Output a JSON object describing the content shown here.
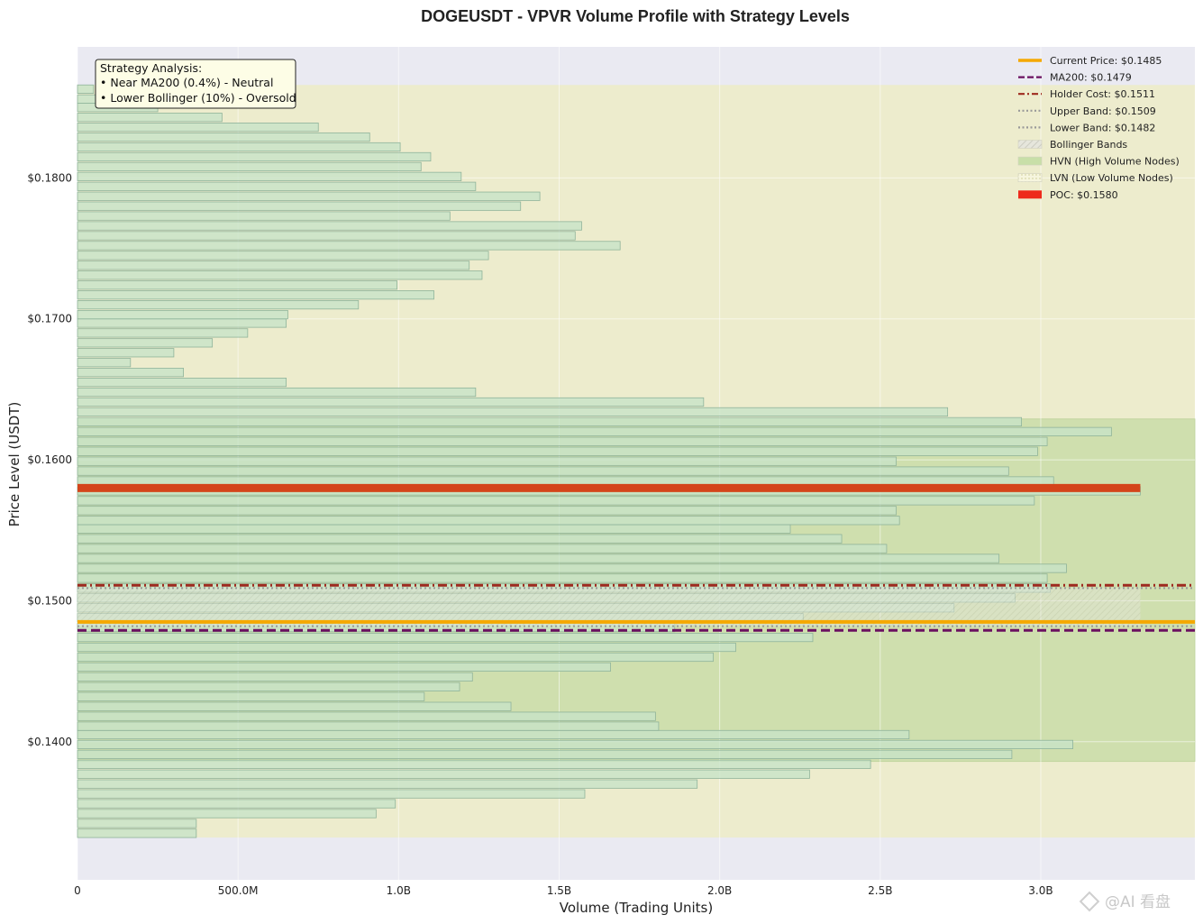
{
  "chart_data": {
    "type": "bar",
    "orientation": "horizontal",
    "title": "DOGEUSDT - VPVR Volume Profile with Strategy Levels",
    "xlabel": "Volume (Trading Units)",
    "ylabel": "Price Level (USDT)",
    "xlim": [
      0,
      3480000000
    ],
    "ylim": [
      0.1302,
      0.1893
    ],
    "x_ticks": [
      {
        "value": 0,
        "label": "0"
      },
      {
        "value": 500000000,
        "label": "500.0M"
      },
      {
        "value": 1000000000,
        "label": "1.0B"
      },
      {
        "value": 1500000000,
        "label": "1.5B"
      },
      {
        "value": 2000000000,
        "label": "2.0B"
      },
      {
        "value": 2500000000,
        "label": "2.5B"
      },
      {
        "value": 3000000000,
        "label": "3.0B"
      }
    ],
    "y_ticks": [
      {
        "value": 0.14,
        "label": "$0.1400"
      },
      {
        "value": 0.15,
        "label": "$0.1500"
      },
      {
        "value": 0.16,
        "label": "$0.1600"
      },
      {
        "value": 0.17,
        "label": "$0.1700"
      },
      {
        "value": 0.18,
        "label": "$0.1800"
      }
    ],
    "grid": true,
    "bin_height": 0.0006,
    "price_range": [
      0.1332,
      0.1866
    ],
    "bins": [
      {
        "price": 0.1335,
        "volume": 370000000
      },
      {
        "price": 0.1342,
        "volume": 370000000
      },
      {
        "price": 0.1349,
        "volume": 930000000
      },
      {
        "price": 0.1356,
        "volume": 990000000
      },
      {
        "price": 0.1363,
        "volume": 1580000000
      },
      {
        "price": 0.137,
        "volume": 1930000000
      },
      {
        "price": 0.1377,
        "volume": 2280000000
      },
      {
        "price": 0.1384,
        "volume": 2470000000
      },
      {
        "price": 0.1391,
        "volume": 2910000000
      },
      {
        "price": 0.1398,
        "volume": 3100000000
      },
      {
        "price": 0.1405,
        "volume": 2590000000
      },
      {
        "price": 0.1411,
        "volume": 1810000000
      },
      {
        "price": 0.1418,
        "volume": 1800000000
      },
      {
        "price": 0.1425,
        "volume": 1350000000
      },
      {
        "price": 0.1432,
        "volume": 1080000000
      },
      {
        "price": 0.1439,
        "volume": 1190000000
      },
      {
        "price": 0.1446,
        "volume": 1230000000
      },
      {
        "price": 0.1453,
        "volume": 1660000000
      },
      {
        "price": 0.146,
        "volume": 1980000000
      },
      {
        "price": 0.1467,
        "volume": 2050000000
      },
      {
        "price": 0.1474,
        "volume": 2290000000
      },
      {
        "price": 0.1481,
        "volume": 1860000000
      },
      {
        "price": 0.1488,
        "volume": 2260000000
      },
      {
        "price": 0.1495,
        "volume": 2730000000
      },
      {
        "price": 0.1502,
        "volume": 2920000000
      },
      {
        "price": 0.1509,
        "volume": 3030000000
      },
      {
        "price": 0.1516,
        "volume": 3020000000
      },
      {
        "price": 0.1523,
        "volume": 3080000000
      },
      {
        "price": 0.153,
        "volume": 2870000000
      },
      {
        "price": 0.1537,
        "volume": 2520000000
      },
      {
        "price": 0.1544,
        "volume": 2380000000
      },
      {
        "price": 0.1551,
        "volume": 2220000000
      },
      {
        "price": 0.1557,
        "volume": 2560000000
      },
      {
        "price": 0.1564,
        "volume": 2550000000
      },
      {
        "price": 0.1571,
        "volume": 2980000000
      },
      {
        "price": 0.1578,
        "volume": 3310000000
      },
      {
        "price": 0.1585,
        "volume": 3040000000
      },
      {
        "price": 0.1592,
        "volume": 2900000000
      },
      {
        "price": 0.1599,
        "volume": 2550000000
      },
      {
        "price": 0.1606,
        "volume": 2990000000
      },
      {
        "price": 0.1613,
        "volume": 3020000000
      },
      {
        "price": 0.162,
        "volume": 3220000000
      },
      {
        "price": 0.1627,
        "volume": 2940000000
      },
      {
        "price": 0.1634,
        "volume": 2710000000
      },
      {
        "price": 0.1641,
        "volume": 1950000000
      },
      {
        "price": 0.1648,
        "volume": 1240000000
      },
      {
        "price": 0.1655,
        "volume": 650000000
      },
      {
        "price": 0.1662,
        "volume": 330000000
      },
      {
        "price": 0.1669,
        "volume": 165000000
      },
      {
        "price": 0.1676,
        "volume": 300000000
      },
      {
        "price": 0.1683,
        "volume": 420000000
      },
      {
        "price": 0.169,
        "volume": 530000000
      },
      {
        "price": 0.1697,
        "volume": 650000000
      },
      {
        "price": 0.1703,
        "volume": 655000000
      },
      {
        "price": 0.171,
        "volume": 875000000
      },
      {
        "price": 0.1717,
        "volume": 1110000000
      },
      {
        "price": 0.1724,
        "volume": 995000000
      },
      {
        "price": 0.1731,
        "volume": 1260000000
      },
      {
        "price": 0.1738,
        "volume": 1220000000
      },
      {
        "price": 0.1745,
        "volume": 1280000000
      },
      {
        "price": 0.1752,
        "volume": 1690000000
      },
      {
        "price": 0.1759,
        "volume": 1550000000
      },
      {
        "price": 0.1766,
        "volume": 1570000000
      },
      {
        "price": 0.1773,
        "volume": 1160000000
      },
      {
        "price": 0.178,
        "volume": 1380000000
      },
      {
        "price": 0.1787,
        "volume": 1440000000
      },
      {
        "price": 0.1794,
        "volume": 1240000000
      },
      {
        "price": 0.1801,
        "volume": 1195000000
      },
      {
        "price": 0.1808,
        "volume": 1070000000
      },
      {
        "price": 0.1815,
        "volume": 1100000000
      },
      {
        "price": 0.1822,
        "volume": 1005000000
      },
      {
        "price": 0.1829,
        "volume": 910000000
      },
      {
        "price": 0.1836,
        "volume": 750000000
      },
      {
        "price": 0.1843,
        "volume": 450000000
      },
      {
        "price": 0.185,
        "volume": 250000000
      },
      {
        "price": 0.1856,
        "volume": 150000000
      },
      {
        "price": 0.1863,
        "volume": 50000000
      }
    ],
    "hvn_range": [
      0.1386,
      0.1629
    ],
    "bollinger_band": [
      0.1482,
      0.1509
    ],
    "poc": {
      "price": 0.158,
      "label": "POC: $0.1580",
      "color": "#d4441a"
    },
    "lines": [
      {
        "key": "current",
        "price": 0.1485,
        "label": "Current Price: $0.1485",
        "color": "#f5a800",
        "style": "solid",
        "width": 4
      },
      {
        "key": "ma200",
        "price": 0.1479,
        "label": "MA200: $0.1479",
        "color": "#6b1060",
        "style": "dashed",
        "width": 3
      },
      {
        "key": "holder",
        "price": 0.1511,
        "label": "Holder Cost: $0.1511",
        "color": "#9e2a1f",
        "style": "dashdot",
        "width": 3
      },
      {
        "key": "upper",
        "price": 0.1509,
        "label": "Upper Band: $0.1509",
        "color": "#999999",
        "style": "dotted",
        "width": 2
      },
      {
        "key": "lower",
        "price": 0.1482,
        "label": "Lower Band: $0.1482",
        "color": "#999999",
        "style": "dotted",
        "width": 2
      }
    ],
    "legend": {
      "placement": "top-right",
      "entries": [
        {
          "label": "Current Price: $0.1485",
          "kind": "line",
          "color": "#f5a800",
          "style": "solid"
        },
        {
          "label": "MA200: $0.1479",
          "kind": "line",
          "color": "#6b1060",
          "style": "dashed"
        },
        {
          "label": "Holder Cost: $0.1511",
          "kind": "line",
          "color": "#9e2a1f",
          "style": "dashdot"
        },
        {
          "label": "Upper Band: $0.1509",
          "kind": "line",
          "color": "#999999",
          "style": "dotted"
        },
        {
          "label": "Lower Band: $0.1482",
          "kind": "line",
          "color": "#999999",
          "style": "dotted"
        },
        {
          "label": "Bollinger Bands",
          "kind": "patch",
          "color": "#dcdcd0",
          "style": "hatch"
        },
        {
          "label": "HVN (High Volume Nodes)",
          "kind": "patch",
          "color": "#c8dfa8",
          "style": "fill"
        },
        {
          "label": "LVN (Low Volume Nodes)",
          "kind": "patch",
          "color": "#f3f2d6",
          "style": "dots"
        },
        {
          "label": "POC: $0.1580",
          "kind": "patch",
          "color": "#ee2a1c",
          "style": "fill"
        }
      ]
    },
    "annotation": {
      "lines": [
        "Strategy Analysis:",
        "• Near MA200 (0.4%) - Neutral",
        "• Lower Bollinger (10%) - Oversold"
      ]
    },
    "colors": {
      "plot_bg": "#eaeaf2",
      "lvn_bg": "#edeccd",
      "hvn_bg": "#cfdfae",
      "bar_fill": "#c6e3c8",
      "bar_edge": "#8fb39a"
    }
  },
  "watermark": "@AI 看盘"
}
